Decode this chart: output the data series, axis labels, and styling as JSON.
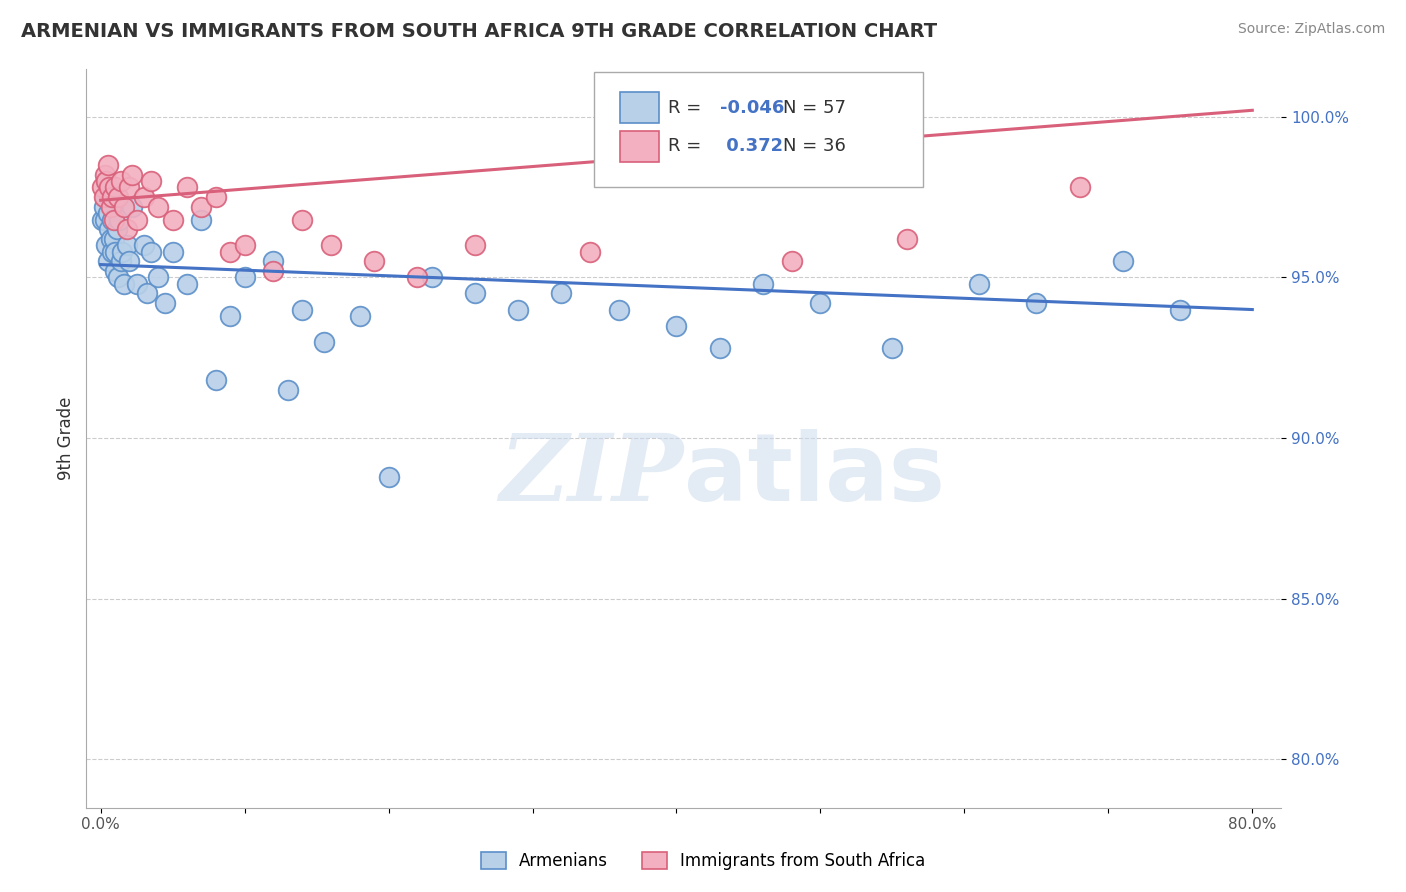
{
  "title": "ARMENIAN VS IMMIGRANTS FROM SOUTH AFRICA 9TH GRADE CORRELATION CHART",
  "source": "Source: ZipAtlas.com",
  "ylabel": "9th Grade",
  "xlim": [
    -0.01,
    0.82
  ],
  "ylim": [
    0.785,
    1.015
  ],
  "xticks": [
    0.0,
    0.1,
    0.2,
    0.3,
    0.4,
    0.5,
    0.6,
    0.7,
    0.8
  ],
  "xticklabels": [
    "0.0%",
    "",
    "",
    "",
    "",
    "",
    "",
    "",
    "80.0%"
  ],
  "yticks": [
    0.8,
    0.85,
    0.9,
    0.95,
    1.0
  ],
  "yticklabels": [
    "80.0%",
    "85.0%",
    "90.0%",
    "95.0%",
    "100.0%"
  ],
  "blue_R": -0.046,
  "blue_N": 57,
  "pink_R": 0.372,
  "pink_N": 36,
  "armenian_color": "#b8d0e8",
  "immigrant_color": "#f2b0c0",
  "blue_edge_color": "#5b8fc9",
  "pink_edge_color": "#d9607a",
  "blue_line_color": "#4472c4",
  "pink_line_color": "#d9607a",
  "watermark": "ZIPatlas",
  "blue_scatter_x": [
    0.001,
    0.002,
    0.003,
    0.003,
    0.004,
    0.004,
    0.005,
    0.005,
    0.006,
    0.006,
    0.007,
    0.008,
    0.008,
    0.009,
    0.01,
    0.01,
    0.011,
    0.012,
    0.013,
    0.014,
    0.015,
    0.016,
    0.018,
    0.02,
    0.022,
    0.025,
    0.03,
    0.032,
    0.035,
    0.04,
    0.045,
    0.05,
    0.06,
    0.07,
    0.08,
    0.09,
    0.1,
    0.12,
    0.13,
    0.14,
    0.155,
    0.18,
    0.2,
    0.23,
    0.26,
    0.29,
    0.32,
    0.36,
    0.4,
    0.43,
    0.46,
    0.5,
    0.55,
    0.61,
    0.65,
    0.71,
    0.75
  ],
  "blue_scatter_y": [
    0.968,
    0.972,
    0.975,
    0.968,
    0.98,
    0.96,
    0.97,
    0.955,
    0.965,
    0.975,
    0.962,
    0.958,
    0.968,
    0.962,
    0.958,
    0.952,
    0.965,
    0.95,
    0.968,
    0.955,
    0.958,
    0.948,
    0.96,
    0.955,
    0.972,
    0.948,
    0.96,
    0.945,
    0.958,
    0.95,
    0.942,
    0.958,
    0.948,
    0.968,
    0.918,
    0.938,
    0.95,
    0.955,
    0.915,
    0.94,
    0.93,
    0.938,
    0.888,
    0.95,
    0.945,
    0.94,
    0.945,
    0.94,
    0.935,
    0.928,
    0.948,
    0.942,
    0.928,
    0.948,
    0.942,
    0.955,
    0.94
  ],
  "pink_scatter_x": [
    0.001,
    0.002,
    0.003,
    0.004,
    0.005,
    0.006,
    0.007,
    0.008,
    0.009,
    0.01,
    0.012,
    0.014,
    0.016,
    0.018,
    0.02,
    0.022,
    0.025,
    0.03,
    0.035,
    0.04,
    0.05,
    0.06,
    0.07,
    0.08,
    0.09,
    0.1,
    0.12,
    0.14,
    0.16,
    0.19,
    0.22,
    0.26,
    0.34,
    0.48,
    0.56,
    0.68
  ],
  "pink_scatter_y": [
    0.978,
    0.975,
    0.982,
    0.98,
    0.985,
    0.978,
    0.972,
    0.975,
    0.968,
    0.978,
    0.975,
    0.98,
    0.972,
    0.965,
    0.978,
    0.982,
    0.968,
    0.975,
    0.98,
    0.972,
    0.968,
    0.978,
    0.972,
    0.975,
    0.958,
    0.96,
    0.952,
    0.968,
    0.96,
    0.955,
    0.95,
    0.96,
    0.958,
    0.955,
    0.962,
    0.978
  ],
  "blue_line_x0": 0.0,
  "blue_line_y0": 0.954,
  "blue_line_x1": 0.8,
  "blue_line_y1": 0.94,
  "pink_line_x0": 0.0,
  "pink_line_y0": 0.974,
  "pink_line_x1": 0.8,
  "pink_line_y1": 1.002
}
